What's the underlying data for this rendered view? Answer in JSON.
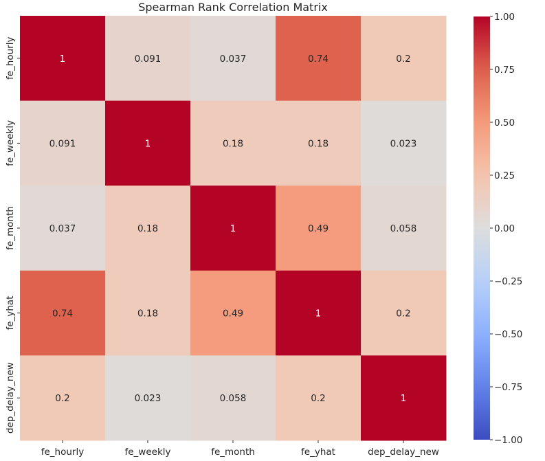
{
  "chart_data": {
    "type": "heatmap",
    "title": "Spearman Rank Correlation Matrix",
    "xlabel": "",
    "ylabel": "",
    "x_categories": [
      "fe_hourly",
      "fe_weekly",
      "fe_month",
      "fe_yhat",
      "dep_delay_new"
    ],
    "y_categories": [
      "fe_hourly",
      "fe_weekly",
      "fe_month",
      "fe_yhat",
      "dep_delay_new"
    ],
    "values": [
      [
        1,
        0.091,
        0.037,
        0.74,
        0.2
      ],
      [
        0.091,
        1,
        0.18,
        0.18,
        0.023
      ],
      [
        0.037,
        0.18,
        1,
        0.49,
        0.058
      ],
      [
        0.74,
        0.18,
        0.49,
        1,
        0.2
      ],
      [
        0.2,
        0.023,
        0.058,
        0.2,
        1
      ]
    ],
    "annotations": [
      [
        "1",
        "0.091",
        "0.037",
        "0.74",
        "0.2"
      ],
      [
        "0.091",
        "1",
        "0.18",
        "0.18",
        "0.023"
      ],
      [
        "0.037",
        "0.18",
        "1",
        "0.49",
        "0.058"
      ],
      [
        "0.74",
        "0.18",
        "0.49",
        "1",
        "0.2"
      ],
      [
        "0.2",
        "0.023",
        "0.058",
        "0.2",
        "1"
      ]
    ],
    "colormap": "coolwarm",
    "vmin": -1,
    "vmax": 1,
    "colorbar_ticks": [
      1,
      0.75,
      0.5,
      0.25,
      0,
      -0.25,
      -0.5,
      -0.75,
      -1
    ],
    "colorbar_tick_labels": [
      "1.00",
      "0.75",
      "0.50",
      "0.25",
      "0.00",
      "−0.25",
      "−0.50",
      "−0.75",
      "−1.00"
    ],
    "grid": false,
    "legend": "colorbar-right"
  }
}
